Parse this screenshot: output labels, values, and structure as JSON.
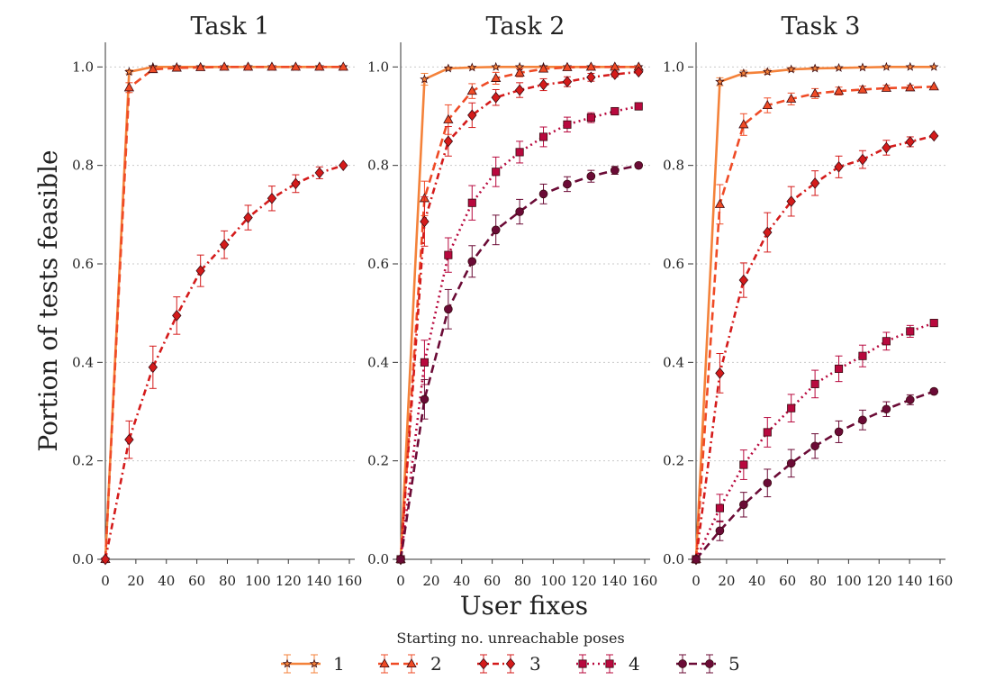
{
  "figure": {
    "ylabel": "Portion of tests feasible",
    "xlabel": "User fixes",
    "legend_title": "Starting no. unreachable poses",
    "legend_placement": "bottom-center"
  },
  "series_styles": [
    {
      "name": "1",
      "color": "#f4823a",
      "marker": "star",
      "dash": "solid"
    },
    {
      "name": "2",
      "color": "#ef4b26",
      "marker": "triangle",
      "dash": "dashed"
    },
    {
      "name": "3",
      "color": "#d41b1b",
      "marker": "diamond",
      "dash": "dashdot"
    },
    {
      "name": "4",
      "color": "#b8093e",
      "marker": "square",
      "dash": "dotted"
    },
    {
      "name": "5",
      "color": "#6b0b36",
      "marker": "circle",
      "dash": "dashed"
    }
  ],
  "chart_data": [
    {
      "type": "line",
      "title": "Task 1",
      "xlim": [
        0,
        160
      ],
      "ylim": [
        0.0,
        1.05
      ],
      "xticks": [
        0,
        20,
        40,
        60,
        80,
        100,
        120,
        140,
        160
      ],
      "yticks": [
        0.0,
        0.2,
        0.4,
        0.6,
        0.8,
        1.0
      ],
      "grid": "horizontal-dotted",
      "x": [
        0,
        15.6,
        31.2,
        46.8,
        62.4,
        78,
        93.6,
        109.2,
        124.8,
        140.4,
        156
      ],
      "series": [
        {
          "name": "1",
          "values": [
            0,
            0.99,
            1.0,
            1.0,
            1.0,
            1.0,
            1.0,
            1.0,
            1.0,
            1.0,
            1.0
          ],
          "err": [
            0,
            0.004,
            0,
            0,
            0,
            0,
            0,
            0,
            0,
            0,
            0
          ]
        },
        {
          "name": "2",
          "values": [
            0,
            0.958,
            0.995,
            0.998,
            0.999,
            1.0,
            1.0,
            1.0,
            1.0,
            1.0,
            1.0
          ],
          "err": [
            0,
            0.01,
            0.004,
            0.002,
            0,
            0,
            0,
            0,
            0,
            0,
            0
          ]
        },
        {
          "name": "3",
          "values": [
            0,
            0.243,
            0.39,
            0.495,
            0.586,
            0.639,
            0.694,
            0.733,
            0.763,
            0.785,
            0.8
          ],
          "err": [
            0,
            0.038,
            0.043,
            0.038,
            0.032,
            0.028,
            0.025,
            0.025,
            0.018,
            0.012,
            0
          ]
        }
      ]
    },
    {
      "type": "line",
      "title": "Task 2",
      "xlim": [
        0,
        160
      ],
      "ylim": [
        0.0,
        1.05
      ],
      "xticks": [
        0,
        20,
        40,
        60,
        80,
        100,
        120,
        140,
        160
      ],
      "yticks": [
        0.0,
        0.2,
        0.4,
        0.6,
        0.8,
        1.0
      ],
      "grid": "horizontal-dotted",
      "x": [
        0,
        15.6,
        31.2,
        46.8,
        62.4,
        78,
        93.6,
        109.2,
        124.8,
        140.4,
        156
      ],
      "series": [
        {
          "name": "1",
          "values": [
            0,
            0.975,
            0.997,
            0.999,
            1.0,
            1.0,
            1.0,
            1.0,
            1.0,
            1.0,
            1.0
          ],
          "err": [
            0,
            0.012,
            0.003,
            0.002,
            0,
            0,
            0,
            0,
            0,
            0,
            0
          ]
        },
        {
          "name": "2",
          "values": [
            0,
            0.733,
            0.893,
            0.951,
            0.977,
            0.988,
            0.996,
            0.999,
            1.0,
            1.0,
            1.0
          ],
          "err": [
            0,
            0.035,
            0.03,
            0.015,
            0.012,
            0.008,
            0.004,
            0.002,
            0,
            0,
            0
          ]
        },
        {
          "name": "3",
          "values": [
            0,
            0.686,
            0.849,
            0.902,
            0.938,
            0.953,
            0.964,
            0.97,
            0.979,
            0.985,
            0.99
          ],
          "err": [
            0,
            0.05,
            0.03,
            0.025,
            0.016,
            0.015,
            0.012,
            0.01,
            0.008,
            0.005,
            0
          ]
        },
        {
          "name": "4",
          "values": [
            0,
            0.4,
            0.618,
            0.724,
            0.787,
            0.827,
            0.858,
            0.883,
            0.897,
            0.91,
            0.92
          ],
          "err": [
            0,
            0.045,
            0.035,
            0.035,
            0.03,
            0.022,
            0.02,
            0.015,
            0.01,
            0.006,
            0
          ]
        },
        {
          "name": "5",
          "values": [
            0,
            0.325,
            0.508,
            0.605,
            0.669,
            0.706,
            0.742,
            0.762,
            0.778,
            0.79,
            0.8
          ],
          "err": [
            0,
            0.04,
            0.04,
            0.032,
            0.03,
            0.025,
            0.02,
            0.015,
            0.012,
            0.008,
            0
          ]
        }
      ]
    },
    {
      "type": "line",
      "title": "Task 3",
      "xlim": [
        0,
        160
      ],
      "ylim": [
        0.0,
        1.05
      ],
      "xticks": [
        0,
        20,
        40,
        60,
        80,
        100,
        120,
        140,
        160
      ],
      "yticks": [
        0.0,
        0.2,
        0.4,
        0.6,
        0.8,
        1.0
      ],
      "grid": "horizontal-dotted",
      "x": [
        0,
        15.6,
        31.2,
        46.8,
        62.4,
        78,
        93.6,
        109.2,
        124.8,
        140.4,
        156
      ],
      "series": [
        {
          "name": "1",
          "values": [
            0,
            0.97,
            0.987,
            0.99,
            0.995,
            0.997,
            0.998,
            0.999,
            1.0,
            1.0,
            1.0
          ],
          "err": [
            0,
            0.008,
            0.006,
            0.005,
            0.004,
            0.003,
            0.002,
            0.001,
            0,
            0,
            0
          ]
        },
        {
          "name": "2",
          "values": [
            0,
            0.721,
            0.883,
            0.922,
            0.935,
            0.946,
            0.951,
            0.954,
            0.957,
            0.958,
            0.96
          ],
          "err": [
            0,
            0.04,
            0.022,
            0.015,
            0.012,
            0.01,
            0.008,
            0.007,
            0.006,
            0.005,
            0
          ]
        },
        {
          "name": "3",
          "values": [
            0,
            0.378,
            0.567,
            0.664,
            0.727,
            0.764,
            0.797,
            0.812,
            0.836,
            0.848,
            0.86
          ],
          "err": [
            0,
            0.04,
            0.035,
            0.04,
            0.03,
            0.025,
            0.022,
            0.018,
            0.015,
            0.01,
            0
          ]
        },
        {
          "name": "4",
          "values": [
            0,
            0.104,
            0.192,
            0.258,
            0.307,
            0.356,
            0.387,
            0.413,
            0.443,
            0.463,
            0.48
          ],
          "err": [
            0,
            0.028,
            0.03,
            0.03,
            0.028,
            0.028,
            0.026,
            0.022,
            0.018,
            0.012,
            0
          ]
        },
        {
          "name": "5",
          "values": [
            0,
            0.058,
            0.111,
            0.155,
            0.195,
            0.23,
            0.259,
            0.283,
            0.305,
            0.324,
            0.341
          ],
          "err": [
            0,
            0.02,
            0.025,
            0.028,
            0.028,
            0.025,
            0.022,
            0.02,
            0.015,
            0.01,
            0
          ]
        }
      ]
    }
  ]
}
